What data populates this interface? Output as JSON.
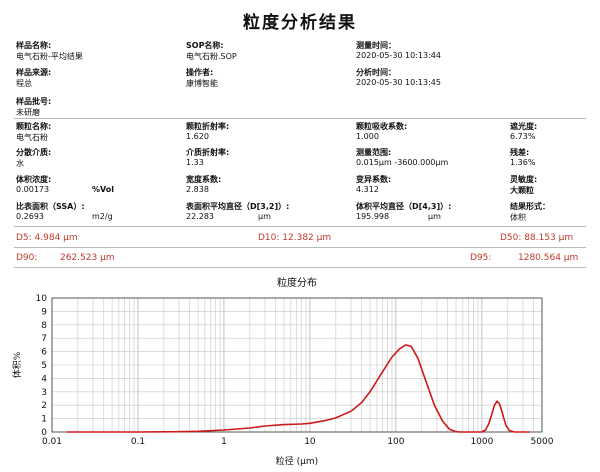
{
  "report": {
    "title": "粒度分析结果",
    "sample_name_label": "样品名称:",
    "sample_name": "电气石粉-平均结果",
    "sop_label": "SOP名称:",
    "sop": "电气石粉.SOP",
    "measure_time_label": "测量时间：",
    "measure_time": "2020-05-30 10:13:44",
    "source_label": "样品来源:",
    "source": "程总",
    "operator_label": "操作者:",
    "operator": "康博智能",
    "analysis_time_label": "分析时间：",
    "analysis_time": "2020-05-30 10:13:45",
    "sample_no_label": "样品批号:",
    "sample_no": "未研磨",
    "particle_name_label": "颗粒名称:",
    "particle_name": "电气石粉",
    "particle_ri_label": "颗粒折射率:",
    "particle_ri": "1.620",
    "particle_abs_label": "颗粒吸收系数:",
    "particle_abs": "1.000",
    "obscuration_label": "遮光度:",
    "obscuration": "6.73%",
    "medium_label": "分散介质:",
    "medium": "水",
    "medium_ri_label": "介质折射率:",
    "medium_ri": "1.33",
    "range_label": "测量范围:",
    "range": "0.015μm -3600.000μm",
    "residual_label": "残差:",
    "residual": "1.36%",
    "conc_label": "体积浓度:",
    "conc": "0.00173",
    "conc_unit": "%Vol",
    "span_label": "宽度系数:",
    "span": "2.838",
    "uniformity_label": "变异系数:",
    "uniformity": "4.312",
    "sensitivity_label": "灵敏度:",
    "sensitivity": "大颗粒",
    "ssa_label": "比表面积（SSA）:",
    "ssa": "0.2693",
    "ssa_unit": "m2/g",
    "d32_label": "表面积平均直径（D[3,2]）:",
    "d32": "22.283",
    "d32_unit": "μm",
    "d43_label": "体积平均直径（D[4,3]）:",
    "d43": "195.998",
    "d43_unit": "μm",
    "result_form_label": "结果形式：",
    "result_form": "体积"
  },
  "percentiles": {
    "d5": "D5: 4.984  μm",
    "d10": "D10: 12.382  μm",
    "d50": "D50: 88.153  μm",
    "d90_label": "D90:",
    "d90": "262.523  μm",
    "d95_label": "D95:",
    "d95": "1280.564  μm"
  },
  "chart_data": {
    "type": "line",
    "title": "粒度分布",
    "xlabel": "粒径 (μm)",
    "ylabel": "体积%",
    "x_scale": "log",
    "xlim": [
      0.01,
      5000
    ],
    "ylim": [
      0,
      10
    ],
    "x_ticks": [
      "0.01",
      "0.1",
      "1",
      "10",
      "100",
      "1000",
      "5000"
    ],
    "y_ticks": [
      "0",
      "1",
      "2",
      "3",
      "4",
      "5",
      "6",
      "7",
      "8",
      "9",
      "10"
    ],
    "grid": true,
    "color": "#cc1a1a",
    "series": [
      {
        "x": [
          0.015,
          0.05,
          0.1,
          0.3,
          0.5,
          1,
          2,
          3,
          5,
          8,
          10,
          15,
          20,
          30,
          40,
          50,
          70,
          90,
          110,
          130,
          150,
          180,
          220,
          280,
          350,
          420,
          500,
          560,
          650,
          800,
          1000,
          1100,
          1200,
          1300,
          1400,
          1500,
          1600,
          1700,
          1800,
          1900,
          2100,
          2400,
          3000,
          3600
        ],
        "y": [
          0,
          0,
          0,
          0.02,
          0.05,
          0.15,
          0.3,
          0.45,
          0.55,
          0.6,
          0.65,
          0.85,
          1.05,
          1.55,
          2.2,
          3.0,
          4.5,
          5.6,
          6.2,
          6.5,
          6.4,
          5.5,
          3.9,
          2.0,
          0.8,
          0.2,
          0.02,
          0,
          0,
          0,
          0,
          0.15,
          0.6,
          1.3,
          2.0,
          2.3,
          2.1,
          1.6,
          1.0,
          0.5,
          0.1,
          0,
          0,
          0
        ]
      }
    ]
  }
}
